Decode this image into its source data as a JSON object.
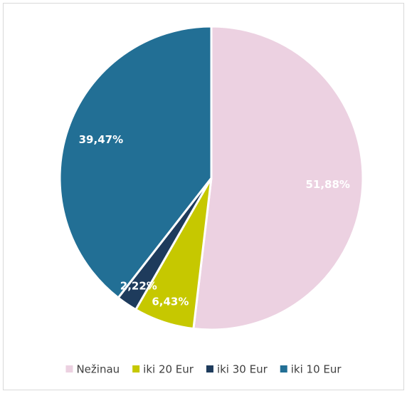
{
  "chart_data": {
    "type": "pie",
    "categories": [
      "Nežinau",
      "iki 20 Eur",
      "iki 30 Eur",
      "iki 10 Eur"
    ],
    "values": [
      51.88,
      6.43,
      2.22,
      39.47
    ],
    "value_labels": [
      "51,88%",
      "6,43%",
      "2,22%",
      "39,47%"
    ],
    "colors": [
      "#ecd1e1",
      "#c6c800",
      "#1e3b5c",
      "#226f95"
    ],
    "legend": "bottom"
  }
}
